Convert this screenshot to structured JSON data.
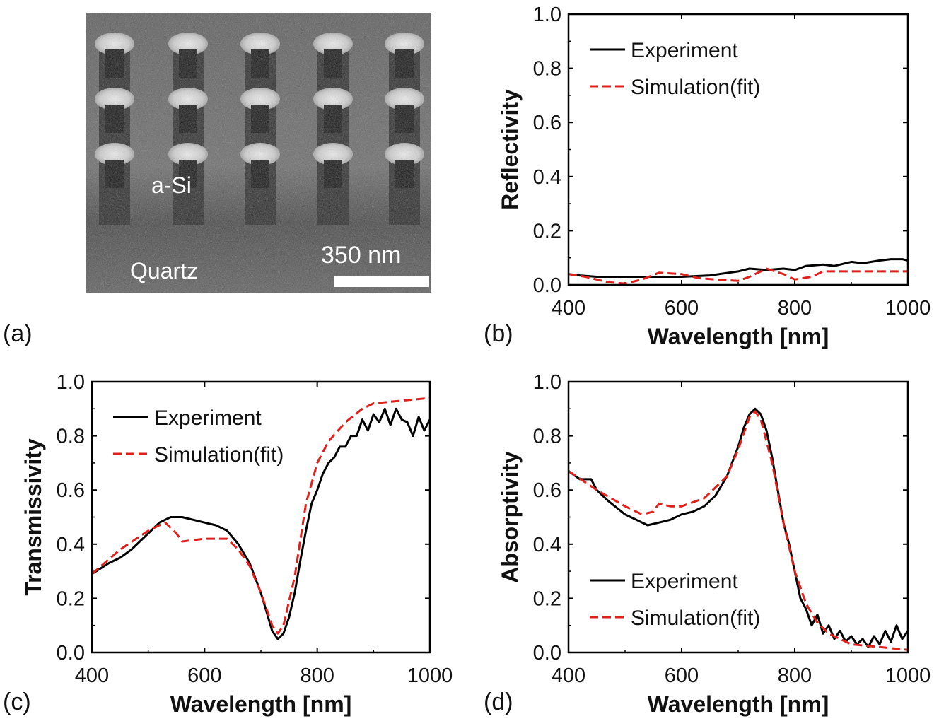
{
  "sem_image": {
    "material_top": "a-Si",
    "substrate": "Quartz",
    "scale_bar": "350 nm"
  },
  "panel_labels": [
    "(a)",
    "(b)",
    "(c)",
    "(d)"
  ],
  "colors": {
    "experiment": "#000000",
    "simulation": "#e0201b"
  },
  "chart_data": [
    {
      "panel": "(b)",
      "type": "line",
      "xlabel": "Wavelength [nm]",
      "ylabel": "Reflectivity",
      "xlim": [
        400,
        1000
      ],
      "ylim": [
        0,
        1.0
      ],
      "xticks": [
        "400",
        "600",
        "800",
        "1000"
      ],
      "yticks": [
        "0.0",
        "0.2",
        "0.4",
        "0.6",
        "0.8",
        "1.0"
      ],
      "legend_position": "top-left",
      "series": [
        {
          "name": "Experiment",
          "style": "solid",
          "x": [
            400,
            420,
            450,
            500,
            550,
            600,
            650,
            700,
            720,
            750,
            780,
            800,
            820,
            850,
            870,
            900,
            920,
            950,
            970,
            990,
            1000
          ],
          "y": [
            0.04,
            0.035,
            0.03,
            0.03,
            0.03,
            0.03,
            0.035,
            0.05,
            0.06,
            0.055,
            0.06,
            0.055,
            0.07,
            0.075,
            0.07,
            0.085,
            0.08,
            0.09,
            0.095,
            0.095,
            0.09
          ]
        },
        {
          "name": "Simulation(fit)",
          "style": "dashed",
          "x": [
            400,
            430,
            470,
            500,
            530,
            560,
            600,
            630,
            660,
            700,
            720,
            750,
            780,
            800,
            830,
            850,
            900,
            950,
            1000
          ],
          "y": [
            0.04,
            0.03,
            0.01,
            0.005,
            0.02,
            0.045,
            0.04,
            0.025,
            0.02,
            0.015,
            0.03,
            0.06,
            0.04,
            0.02,
            0.03,
            0.05,
            0.05,
            0.05,
            0.05
          ]
        }
      ]
    },
    {
      "panel": "(c)",
      "type": "line",
      "xlabel": "Wavelength [nm]",
      "ylabel": "Transmissivity",
      "xlim": [
        400,
        1000
      ],
      "ylim": [
        0,
        1.0
      ],
      "xticks": [
        "400",
        "600",
        "800",
        "1000"
      ],
      "yticks": [
        "0.0",
        "0.2",
        "0.4",
        "0.6",
        "0.8",
        "1.0"
      ],
      "legend_position": "top-left",
      "series": [
        {
          "name": "Experiment",
          "style": "solid",
          "x": [
            400,
            430,
            450,
            470,
            500,
            520,
            540,
            560,
            580,
            600,
            620,
            640,
            660,
            680,
            700,
            710,
            720,
            730,
            740,
            750,
            760,
            770,
            780,
            790,
            800,
            810,
            820,
            830,
            840,
            850,
            860,
            870,
            880,
            890,
            900,
            910,
            920,
            930,
            940,
            950,
            960,
            970,
            980,
            990,
            1000
          ],
          "y": [
            0.29,
            0.33,
            0.35,
            0.38,
            0.44,
            0.48,
            0.5,
            0.5,
            0.49,
            0.48,
            0.47,
            0.45,
            0.4,
            0.33,
            0.22,
            0.15,
            0.08,
            0.05,
            0.07,
            0.13,
            0.22,
            0.34,
            0.45,
            0.55,
            0.6,
            0.66,
            0.7,
            0.72,
            0.76,
            0.76,
            0.8,
            0.8,
            0.86,
            0.82,
            0.88,
            0.85,
            0.9,
            0.84,
            0.9,
            0.86,
            0.85,
            0.8,
            0.87,
            0.82,
            0.86
          ]
        },
        {
          "name": "Simulation(fit)",
          "style": "dashed",
          "x": [
            400,
            450,
            500,
            530,
            540,
            550,
            560,
            600,
            640,
            660,
            680,
            700,
            720,
            730,
            740,
            760,
            780,
            800,
            820,
            850,
            880,
            900,
            950,
            1000
          ],
          "y": [
            0.29,
            0.38,
            0.45,
            0.48,
            0.46,
            0.44,
            0.41,
            0.42,
            0.42,
            0.38,
            0.32,
            0.22,
            0.1,
            0.07,
            0.1,
            0.28,
            0.55,
            0.7,
            0.78,
            0.85,
            0.9,
            0.92,
            0.93,
            0.94
          ]
        }
      ]
    },
    {
      "panel": "(d)",
      "type": "line",
      "xlabel": "Wavelength [nm]",
      "ylabel": "Absorptivity",
      "xlim": [
        400,
        1000
      ],
      "ylim": [
        0,
        1.0
      ],
      "xticks": [
        "400",
        "600",
        "800",
        "1000"
      ],
      "yticks": [
        "0.0",
        "0.2",
        "0.4",
        "0.6",
        "0.8",
        "1.0"
      ],
      "legend_position": "bottom-left",
      "series": [
        {
          "name": "Experiment",
          "style": "solid",
          "x": [
            400,
            420,
            440,
            450,
            470,
            500,
            520,
            540,
            560,
            580,
            600,
            620,
            640,
            660,
            680,
            700,
            710,
            720,
            730,
            740,
            750,
            760,
            770,
            780,
            790,
            800,
            810,
            820,
            830,
            840,
            850,
            860,
            870,
            880,
            890,
            900,
            910,
            920,
            930,
            940,
            950,
            960,
            970,
            980,
            990,
            1000
          ],
          "y": [
            0.67,
            0.64,
            0.64,
            0.6,
            0.56,
            0.51,
            0.49,
            0.47,
            0.48,
            0.49,
            0.51,
            0.52,
            0.54,
            0.58,
            0.65,
            0.76,
            0.83,
            0.88,
            0.9,
            0.88,
            0.82,
            0.72,
            0.6,
            0.48,
            0.4,
            0.3,
            0.2,
            0.16,
            0.1,
            0.14,
            0.07,
            0.1,
            0.05,
            0.08,
            0.04,
            0.06,
            0.03,
            0.05,
            0.02,
            0.06,
            0.03,
            0.08,
            0.04,
            0.1,
            0.05,
            0.08
          ]
        },
        {
          "name": "Simulation(fit)",
          "style": "dashed",
          "x": [
            400,
            450,
            500,
            530,
            550,
            560,
            580,
            600,
            640,
            680,
            700,
            720,
            730,
            740,
            760,
            780,
            800,
            820,
            840,
            860,
            880,
            900,
            950,
            1000
          ],
          "y": [
            0.67,
            0.6,
            0.54,
            0.51,
            0.52,
            0.55,
            0.54,
            0.54,
            0.57,
            0.65,
            0.75,
            0.87,
            0.89,
            0.86,
            0.7,
            0.48,
            0.3,
            0.18,
            0.11,
            0.07,
            0.05,
            0.03,
            0.02,
            0.01
          ]
        }
      ]
    }
  ]
}
